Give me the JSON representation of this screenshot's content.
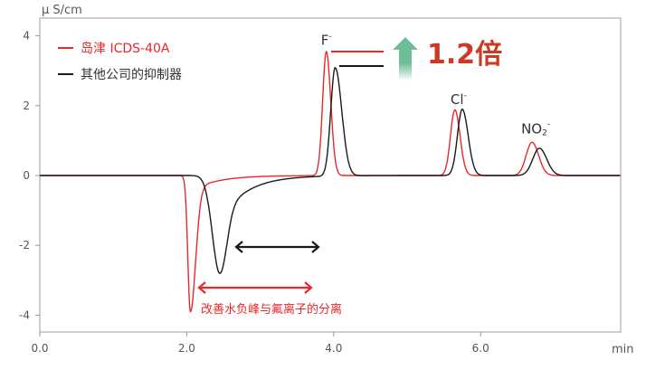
{
  "chart_data": {
    "type": "line",
    "title": "",
    "ylabel": "μ S/cm",
    "xlabel": "min",
    "xlim": [
      0,
      7.9
    ],
    "ylim": [
      -4.55,
      4.45
    ],
    "xticks": [
      "0.0",
      "2.0",
      "4.0",
      "6.0"
    ],
    "yticks": [
      "4",
      "2",
      "0",
      "-2",
      "-4"
    ],
    "grid": false,
    "legend_position": "top-left",
    "series": [
      {
        "name": "岛津 ICDS-40A",
        "color": "#e8282b",
        "peaks": [
          {
            "t": 2.05,
            "h": -3.9,
            "wl": 0.035,
            "wr": 0.07,
            "tail": -0.45,
            "decay": 0.35
          },
          {
            "t": 3.9,
            "h": 3.55,
            "wl": 0.05,
            "wr": 0.06
          },
          {
            "t": 5.65,
            "h": 1.88,
            "wl": 0.06,
            "wr": 0.07
          },
          {
            "t": 6.7,
            "h": 0.95,
            "wl": 0.08,
            "wr": 0.09
          }
        ]
      },
      {
        "name": "其他公司的抑制器",
        "color": "#1a1a1a",
        "peaks": [
          {
            "t": 2.45,
            "h": -2.8,
            "wl": 0.1,
            "wr": 0.09,
            "tail": -1.3,
            "decay": 0.35
          },
          {
            "t": 4.02,
            "h": 3.1,
            "wl": 0.06,
            "wr": 0.09
          },
          {
            "t": 5.75,
            "h": 1.9,
            "wl": 0.065,
            "wr": 0.08
          },
          {
            "t": 6.8,
            "h": 0.78,
            "wl": 0.09,
            "wr": 0.1
          }
        ]
      }
    ],
    "annotations": {
      "peak_labels": [
        {
          "text": "F",
          "sup": "-",
          "t": 3.9,
          "v": 3.75
        },
        {
          "text": "Cl",
          "sup": "-",
          "t": 5.7,
          "v": 2.05
        },
        {
          "text": "NO",
          "sub": "2",
          "sup": "-",
          "t": 6.75,
          "v": 1.2
        }
      ],
      "ratio_text": "1.2倍",
      "ratio_color": "#cc3a25",
      "arrow_color": "#6dbf98",
      "separation_text": "改善水负峰与氟离子的分离",
      "separation_color": "#e8282b"
    }
  }
}
